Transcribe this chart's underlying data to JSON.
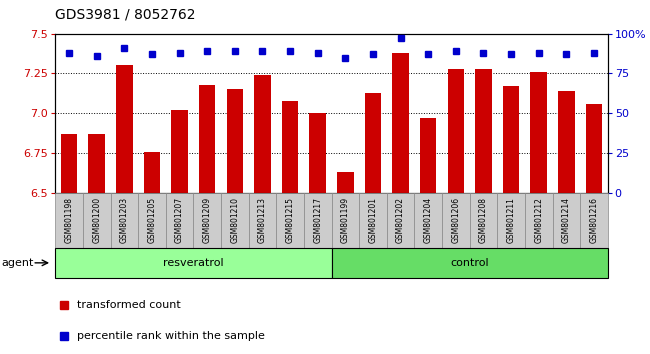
{
  "title": "GDS3981 / 8052762",
  "categories": [
    "GSM801198",
    "GSM801200",
    "GSM801203",
    "GSM801205",
    "GSM801207",
    "GSM801209",
    "GSM801210",
    "GSM801213",
    "GSM801215",
    "GSM801217",
    "GSM801199",
    "GSM801201",
    "GSM801202",
    "GSM801204",
    "GSM801206",
    "GSM801208",
    "GSM801211",
    "GSM801212",
    "GSM801214",
    "GSM801216"
  ],
  "bar_values": [
    6.87,
    6.87,
    7.3,
    6.76,
    7.02,
    7.18,
    7.15,
    7.24,
    7.08,
    7.0,
    6.63,
    7.13,
    7.38,
    6.97,
    7.28,
    7.28,
    7.17,
    7.26,
    7.14,
    7.06
  ],
  "percentile_values": [
    88,
    86,
    91,
    87,
    88,
    89,
    89,
    89,
    89,
    88,
    85,
    87,
    97,
    87,
    89,
    88,
    87,
    88,
    87,
    88
  ],
  "bar_color": "#cc0000",
  "percentile_color": "#0000cc",
  "ylim": [
    6.5,
    7.5
  ],
  "ylim_right": [
    0,
    100
  ],
  "yticks_left": [
    6.5,
    6.75,
    7.0,
    7.25,
    7.5
  ],
  "yticks_right": [
    0,
    25,
    50,
    75,
    100
  ],
  "groups": [
    {
      "label": "resveratrol",
      "n": 10,
      "color": "#99ff99"
    },
    {
      "label": "control",
      "n": 10,
      "color": "#66dd66"
    }
  ],
  "legend_items": [
    {
      "label": "transformed count",
      "color": "#cc0000"
    },
    {
      "label": "percentile rank within the sample",
      "color": "#0000cc"
    }
  ],
  "grid_linestyle": "dotted",
  "bg_axes": "#ffffff",
  "bg_fig": "#ffffff",
  "bar_width": 0.6,
  "cell_color": "#cccccc",
  "cell_border": "#888888"
}
